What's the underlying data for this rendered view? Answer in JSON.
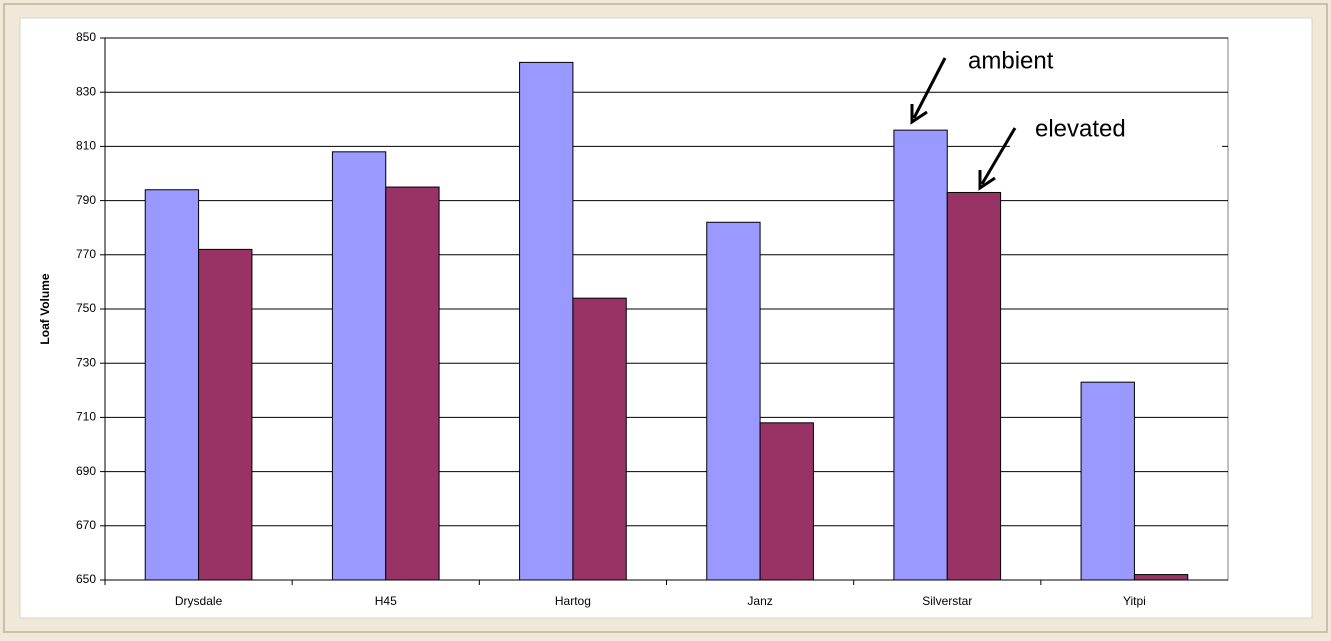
{
  "chart_data": {
    "type": "bar",
    "ylabel": "Loaf Volume",
    "categories": [
      "Drysdale",
      "H45",
      "Hartog",
      "Janz",
      "Silverstar",
      "Yitpi"
    ],
    "series": [
      {
        "name": "ambient",
        "color": "#9999ff",
        "values": [
          794,
          808,
          841,
          782,
          816,
          723
        ]
      },
      {
        "name": "elevated",
        "color": "#993366",
        "values": [
          772,
          795,
          754,
          708,
          793,
          652
        ]
      }
    ],
    "ylim": [
      650,
      850
    ],
    "yticks": [
      650,
      670,
      690,
      710,
      730,
      750,
      770,
      790,
      810,
      830,
      850
    ],
    "grid": true
  }
}
